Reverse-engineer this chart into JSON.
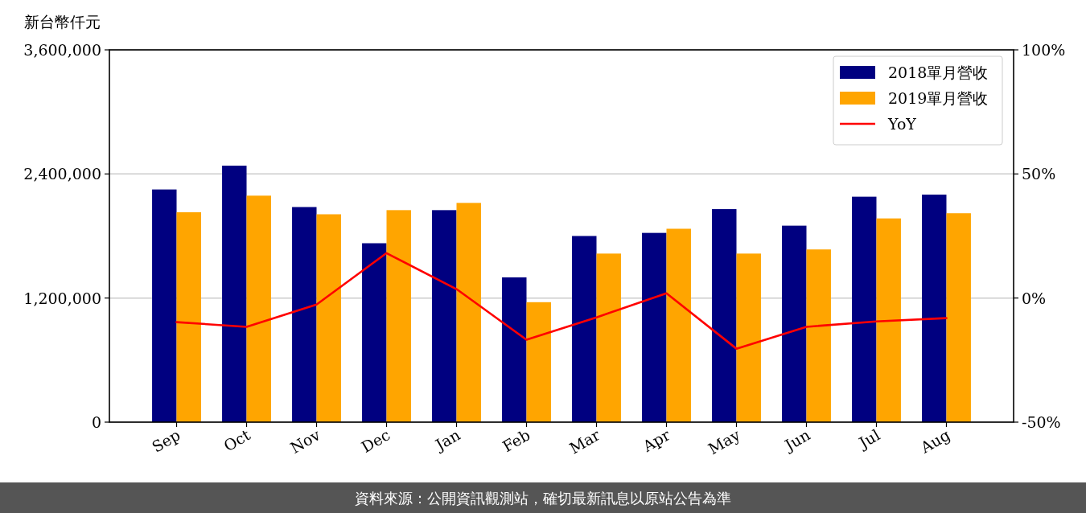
{
  "chart_data": {
    "type": "bar",
    "ylabel": "新台幣仟元",
    "categories": [
      "Sep",
      "Oct",
      "Nov",
      "Dec",
      "Jan",
      "Feb",
      "Mar",
      "Apr",
      "May",
      "Jun",
      "Jul",
      "Aug"
    ],
    "series": [
      {
        "name": "2018單月營收",
        "color": "#000080",
        "values": [
          2250000,
          2480000,
          2080000,
          1730000,
          2050000,
          1400000,
          1800000,
          1830000,
          2060000,
          1900000,
          2180000,
          2200000
        ]
      },
      {
        "name": "2019單月營收",
        "color": "#ffa500",
        "values": [
          2030000,
          2190000,
          2010000,
          2050000,
          2120000,
          1160000,
          1630000,
          1870000,
          1630000,
          1670000,
          1970000,
          2020000
        ]
      },
      {
        "name": "YoY",
        "type": "line",
        "axis": "y2",
        "color": "#ff0000",
        "values": [
          -9.7,
          -11.6,
          -2.6,
          18.1,
          3.6,
          -16.8,
          -7.8,
          1.9,
          -20.4,
          -11.6,
          -9.4,
          -8.1
        ]
      }
    ],
    "ylim": [
      0,
      3600000
    ],
    "yticks": [
      {
        "value": 0,
        "label": "0"
      },
      {
        "value": 1200000,
        "label": "1,200,000"
      },
      {
        "value": 2400000,
        "label": "2,400,000"
      },
      {
        "value": 3600000,
        "label": "3,600,000"
      }
    ],
    "y2lim": [
      -50,
      100
    ],
    "y2ticks": [
      {
        "value": -50,
        "label": "-50%"
      },
      {
        "value": 0,
        "label": "0%"
      },
      {
        "value": 50,
        "label": "50%"
      },
      {
        "value": 100,
        "label": "100%"
      }
    ],
    "grid": "y",
    "legend": "top right",
    "annotations": [
      "資料來源：公開資訊觀測站，確切最新訊息以原站公告為準"
    ]
  }
}
